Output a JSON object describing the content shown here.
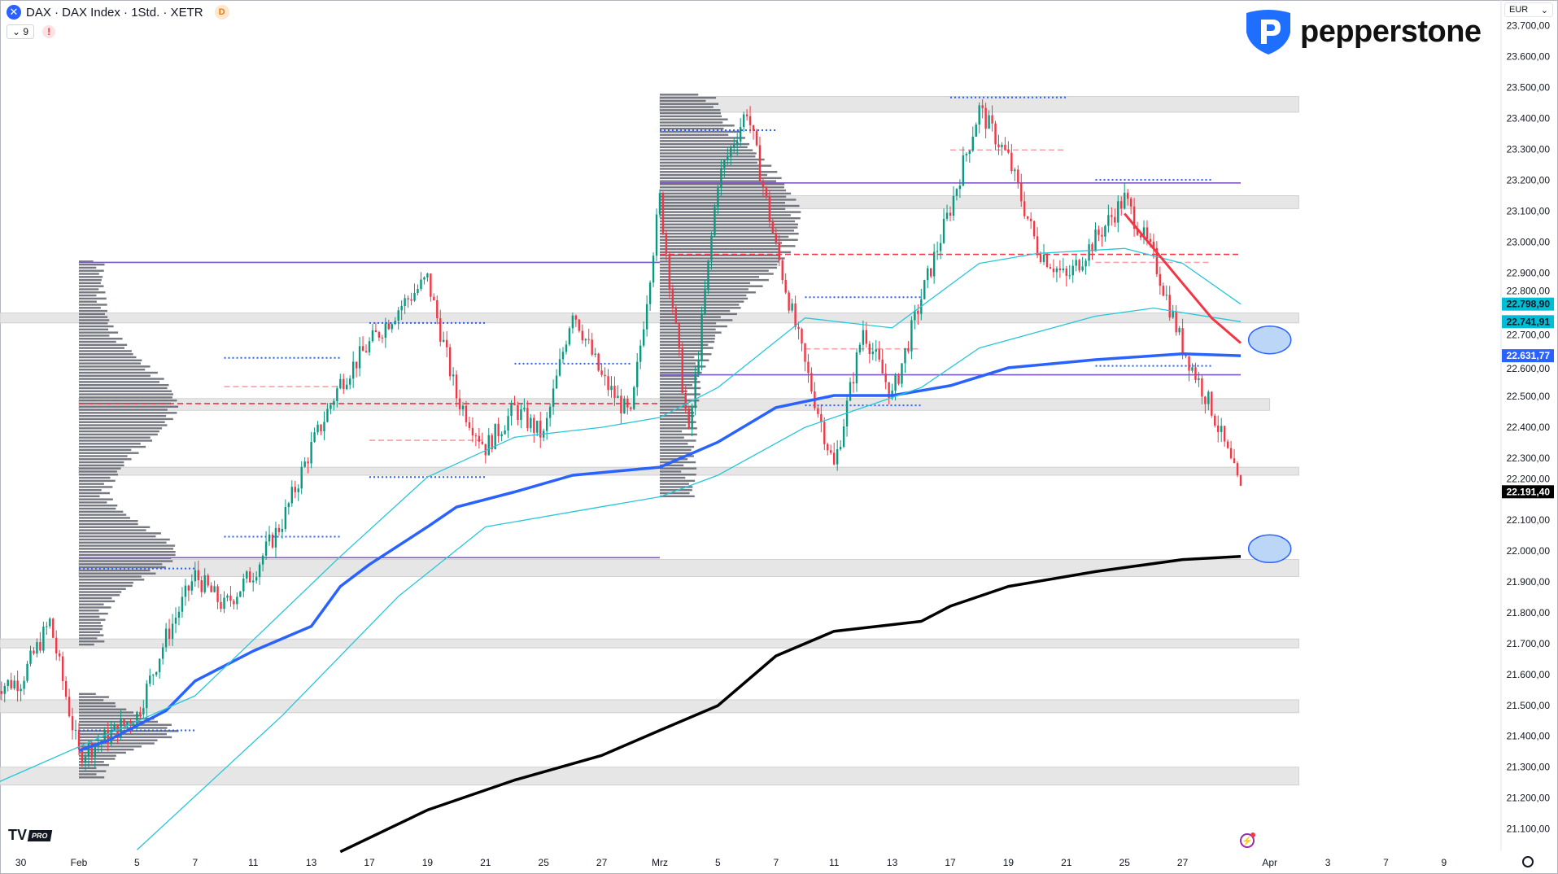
{
  "header": {
    "symbol_title": "DAX · DAX Index · 1Std. · XETR",
    "symbol_icon": "x-circle-icon",
    "delayed_badge": "D",
    "indicator_count": "9",
    "warning_badge": "!"
  },
  "brand": {
    "logo_text": "pepperstone",
    "color": "#1e6fff"
  },
  "currency_selector": "EUR",
  "footer": {
    "tv_logo": "TV",
    "tv_pro": "PRO"
  },
  "colors": {
    "up": "#089981",
    "down": "#f23645",
    "vwap": "#2962ff",
    "ma": "#26c6da",
    "sma": "#000000",
    "purple": "#7e57c2",
    "zone": "#e0e0e0"
  },
  "price_labels": [
    {
      "text": "22.798,90",
      "price": 22798.9,
      "bg": "#00bcd4",
      "fg": "#131722"
    },
    {
      "text": "22.741,91",
      "price": 22741.91,
      "bg": "#00bcd4",
      "fg": "#131722"
    },
    {
      "text": "22.631,77",
      "price": 22631.77,
      "bg": "#2962ff",
      "fg": "#ffffff"
    },
    {
      "text": "22.191,40",
      "price": 22191.4,
      "bg": "#000000",
      "fg": "#ffffff"
    }
  ],
  "chart_data": {
    "type": "candlestick",
    "timeframe": "1Std.",
    "y_ticks": [
      "23.700,00",
      "23.600,00",
      "23.500,00",
      "23.400,00",
      "23.300,00",
      "23.200,00",
      "23.100,00",
      "23.000,00",
      "22.900,00",
      "22.800,00",
      "22.700,00",
      "22.600,00",
      "22.500,00",
      "22.400,00",
      "22.300,00",
      "22.200,00",
      "22.100,00",
      "22.000,00",
      "21.900,00",
      "21.800,00",
      "21.700,00",
      "21.600,00",
      "21.500,00",
      "21.400,00",
      "21.300,00",
      "21.200,00",
      "21.100,00"
    ],
    "ylim": [
      21050,
      23760
    ],
    "x_ticks": [
      {
        "label": "30",
        "date": "2025-01-30"
      },
      {
        "label": "Feb",
        "date": "2025-02-03"
      },
      {
        "label": "5",
        "date": "2025-02-05"
      },
      {
        "label": "7",
        "date": "2025-02-07"
      },
      {
        "label": "11",
        "date": "2025-02-11"
      },
      {
        "label": "13",
        "date": "2025-02-13"
      },
      {
        "label": "17",
        "date": "2025-02-17"
      },
      {
        "label": "19",
        "date": "2025-02-19"
      },
      {
        "label": "21",
        "date": "2025-02-21"
      },
      {
        "label": "25",
        "date": "2025-02-25"
      },
      {
        "label": "27",
        "date": "2025-02-27"
      },
      {
        "label": "Mrz",
        "date": "2025-03-03"
      },
      {
        "label": "5",
        "date": "2025-03-05"
      },
      {
        "label": "7",
        "date": "2025-03-07"
      },
      {
        "label": "11",
        "date": "2025-03-11"
      },
      {
        "label": "13",
        "date": "2025-03-13"
      },
      {
        "label": "17",
        "date": "2025-03-17"
      },
      {
        "label": "19",
        "date": "2025-03-19"
      },
      {
        "label": "21",
        "date": "2025-03-21"
      },
      {
        "label": "25",
        "date": "2025-03-25"
      },
      {
        "label": "27",
        "date": "2025-03-27"
      },
      {
        "label": "Apr",
        "date": "2025-04-01"
      },
      {
        "label": "3",
        "date": "2025-04-03"
      },
      {
        "label": "7",
        "date": "2025-04-07"
      },
      {
        "label": "9",
        "date": "2025-04-09"
      }
    ],
    "price_path": [
      [
        "2025-01-29",
        21560
      ],
      [
        "2025-01-30",
        21580
      ],
      [
        "2025-01-31",
        21770
      ],
      [
        "2025-02-03",
        21340
      ],
      [
        "2025-02-04",
        21400
      ],
      [
        "2025-02-05",
        21470
      ],
      [
        "2025-02-06",
        21720
      ],
      [
        "2025-02-07",
        21920
      ],
      [
        "2025-02-10",
        21820
      ],
      [
        "2025-02-11",
        21930
      ],
      [
        "2025-02-12",
        22095
      ],
      [
        "2025-02-13",
        22335
      ],
      [
        "2025-02-14",
        22545
      ],
      [
        "2025-02-17",
        22670
      ],
      [
        "2025-02-18",
        22785
      ],
      [
        "2025-02-19",
        22880
      ],
      [
        "2025-02-20",
        22500
      ],
      [
        "2025-02-21",
        22335
      ],
      [
        "2025-02-24",
        22460
      ],
      [
        "2025-02-25",
        22370
      ],
      [
        "2025-02-26",
        22785
      ],
      [
        "2025-02-27",
        22560
      ],
      [
        "2025-02-28",
        22430
      ],
      [
        "2025-03-03",
        23140
      ],
      [
        "2025-03-04",
        22370
      ],
      [
        "2025-03-05",
        23200
      ],
      [
        "2025-03-06",
        23430
      ],
      [
        "2025-03-07",
        22980
      ],
      [
        "2025-03-10",
        22600
      ],
      [
        "2025-03-11",
        22270
      ],
      [
        "2025-03-12",
        22720
      ],
      [
        "2025-03-13",
        22500
      ],
      [
        "2025-03-14",
        22820
      ],
      [
        "2025-03-17",
        23110
      ],
      [
        "2025-03-18",
        23430
      ],
      [
        "2025-03-19",
        23270
      ],
      [
        "2025-03-20",
        22980
      ],
      [
        "2025-03-21",
        22880
      ],
      [
        "2025-03-24",
        23010
      ],
      [
        "2025-03-25",
        23140
      ],
      [
        "2025-03-26",
        22950
      ],
      [
        "2025-03-27",
        22660
      ],
      [
        "2025-03-28",
        22460
      ],
      [
        "2025-03-31",
        22191.4
      ]
    ],
    "lines": [
      {
        "id": "vwap",
        "color": "#2962ff",
        "width": 3.5,
        "points": [
          [
            "2025-02-03",
            21354
          ],
          [
            "2025-02-04",
            21386
          ],
          [
            "2025-02-06",
            21483
          ],
          [
            "2025-02-07",
            21579
          ],
          [
            "2025-02-11",
            21676
          ],
          [
            "2025-02-13",
            21756
          ],
          [
            "2025-02-14",
            21885
          ],
          [
            "2025-02-17",
            21956
          ],
          [
            "2025-02-19",
            22078
          ],
          [
            "2025-02-20",
            22142
          ],
          [
            "2025-02-24",
            22191
          ],
          [
            "2025-02-26",
            22245
          ],
          [
            "2025-03-03",
            22271
          ],
          [
            "2025-03-05",
            22352
          ],
          [
            "2025-03-07",
            22464
          ],
          [
            "2025-03-11",
            22503
          ],
          [
            "2025-03-13",
            22503
          ],
          [
            "2025-03-17",
            22535
          ],
          [
            "2025-03-19",
            22593
          ],
          [
            "2025-03-24",
            22619
          ],
          [
            "2025-03-27",
            22638
          ],
          [
            "2025-03-31",
            22631.77
          ]
        ]
      },
      {
        "id": "sma-black",
        "color": "#000000",
        "width": 3.5,
        "points": [
          [
            "2025-02-14",
            21026
          ],
          [
            "2025-02-19",
            21161
          ],
          [
            "2025-02-24",
            21258
          ],
          [
            "2025-02-27",
            21338
          ],
          [
            "2025-03-03",
            21419
          ],
          [
            "2025-03-05",
            21499
          ],
          [
            "2025-03-07",
            21660
          ],
          [
            "2025-03-11",
            21740
          ],
          [
            "2025-03-14",
            21772
          ],
          [
            "2025-03-17",
            21821
          ],
          [
            "2025-03-19",
            21885
          ],
          [
            "2025-03-24",
            21933
          ],
          [
            "2025-03-27",
            21972
          ],
          [
            "2025-03-31",
            21982
          ]
        ]
      },
      {
        "id": "ma-cyan-fast",
        "color": "#26c6da",
        "width": 1.3,
        "points": [
          [
            "2025-01-29",
            21242
          ],
          [
            "2025-02-07",
            21531
          ],
          [
            "2025-02-14",
            21982
          ],
          [
            "2025-02-19",
            22239
          ],
          [
            "2025-02-24",
            22368
          ],
          [
            "2025-02-27",
            22400
          ],
          [
            "2025-03-03",
            22432
          ],
          [
            "2025-03-05",
            22529
          ],
          [
            "2025-03-10",
            22754
          ],
          [
            "2025-03-13",
            22722
          ],
          [
            "2025-03-18",
            22931
          ],
          [
            "2025-03-20",
            22963
          ],
          [
            "2025-03-25",
            22979
          ],
          [
            "2025-03-27",
            22931
          ],
          [
            "2025-03-31",
            22798.9
          ]
        ]
      },
      {
        "id": "ma-cyan-slow",
        "color": "#26c6da",
        "width": 1.3,
        "points": [
          [
            "2025-02-05",
            21032
          ],
          [
            "2025-02-12",
            21467
          ],
          [
            "2025-02-18",
            21853
          ],
          [
            "2025-02-21",
            22078
          ],
          [
            "2025-02-27",
            22143
          ],
          [
            "2025-03-03",
            22175
          ],
          [
            "2025-03-05",
            22245
          ],
          [
            "2025-03-10",
            22400
          ],
          [
            "2025-03-12",
            22464
          ],
          [
            "2025-03-14",
            22529
          ],
          [
            "2025-03-18",
            22657
          ],
          [
            "2025-03-24",
            22760
          ],
          [
            "2025-03-26",
            22786
          ],
          [
            "2025-03-31",
            22741.91
          ]
        ]
      },
      {
        "id": "ma-red",
        "color": "#f23645",
        "width": 3,
        "points": [
          [
            "2025-03-25",
            23092
          ],
          [
            "2025-03-26",
            22979
          ],
          [
            "2025-03-27",
            22866
          ],
          [
            "2025-03-28",
            22754
          ],
          [
            "2025-03-31",
            22673
          ]
        ]
      }
    ],
    "zones": [
      {
        "from": "2025-03-03",
        "to": "2025-04-02",
        "high": 23471,
        "low": 23420
      },
      {
        "from": "2025-03-03",
        "to": "2025-04-02",
        "high": 23150,
        "low": 23108
      },
      {
        "from": "2025-01-29",
        "to": "2025-04-02",
        "high": 22770,
        "low": 22738
      },
      {
        "from": "2025-02-03",
        "to": "2025-04-01",
        "high": 22493,
        "low": 22455
      },
      {
        "from": "2025-02-03",
        "to": "2025-04-02",
        "high": 22271,
        "low": 22245
      },
      {
        "from": "2025-02-03",
        "to": "2025-04-02",
        "high": 21972,
        "low": 21917
      },
      {
        "from": "2025-01-29",
        "to": "2025-04-02",
        "high": 21715,
        "low": 21686
      },
      {
        "from": "2025-01-29",
        "to": "2025-04-02",
        "high": 21518,
        "low": 21476
      },
      {
        "from": "2025-01-29",
        "to": "2025-04-02",
        "high": 21300,
        "low": 21242
      }
    ],
    "levels": [
      {
        "from": "2025-02-03",
        "to": "2025-03-03",
        "price": 22934,
        "style": "solid",
        "color": "#7e57c2"
      },
      {
        "from": "2025-03-03",
        "to": "2025-03-31",
        "price": 23191,
        "style": "solid",
        "color": "#7e57c2"
      },
      {
        "from": "2025-03-03",
        "to": "2025-03-31",
        "price": 22570,
        "style": "solid",
        "color": "#7e57c2"
      },
      {
        "from": "2025-02-03",
        "to": "2025-03-03",
        "price": 21978,
        "style": "solid",
        "color": "#7e57c2"
      },
      {
        "from": "2025-03-03",
        "to": "2025-03-31",
        "price": 22960,
        "style": "dashed",
        "color": "#f23645"
      },
      {
        "from": "2025-02-03",
        "to": "2025-03-03",
        "price": 22477,
        "style": "dashed",
        "color": "#f23645"
      },
      {
        "from": "2025-03-17",
        "to": "2025-03-21",
        "price": 23298,
        "style": "dashed",
        "color": "#f7a1a8"
      },
      {
        "from": "2025-03-24",
        "to": "2025-03-28",
        "price": 22934,
        "style": "dashed",
        "color": "#f7a1a8"
      },
      {
        "from": "2025-02-10",
        "to": "2025-02-14",
        "price": 22532,
        "style": "dashed",
        "color": "#f7a1a8"
      },
      {
        "from": "2025-02-17",
        "to": "2025-02-21",
        "price": 22358,
        "style": "dashed",
        "color": "#f7a1a8"
      },
      {
        "from": "2025-03-10",
        "to": "2025-03-14",
        "price": 22654,
        "style": "dashed",
        "color": "#f7a1a8"
      },
      {
        "from": "2025-03-17",
        "to": "2025-03-21",
        "price": 23468,
        "style": "dotted",
        "color": "#2962ff"
      },
      {
        "from": "2025-03-03",
        "to": "2025-03-07",
        "price": 23362,
        "style": "dotted",
        "color": "#2962ff"
      },
      {
        "from": "2025-03-24",
        "to": "2025-03-28",
        "price": 23201,
        "style": "dotted",
        "color": "#2962ff"
      },
      {
        "from": "2025-02-17",
        "to": "2025-02-21",
        "price": 22738,
        "style": "dotted",
        "color": "#2962ff"
      },
      {
        "from": "2025-02-10",
        "to": "2025-02-14",
        "price": 22625,
        "style": "dotted",
        "color": "#2962ff"
      },
      {
        "from": "2025-02-24",
        "to": "2025-02-28",
        "price": 22606,
        "style": "dotted",
        "color": "#2962ff"
      },
      {
        "from": "2025-03-10",
        "to": "2025-03-14",
        "price": 22821,
        "style": "dotted",
        "color": "#2962ff"
      },
      {
        "from": "2025-03-24",
        "to": "2025-03-28",
        "price": 22599,
        "style": "dotted",
        "color": "#2962ff"
      },
      {
        "from": "2025-03-10",
        "to": "2025-03-14",
        "price": 22471,
        "style": "dotted",
        "color": "#2962ff"
      },
      {
        "from": "2025-02-17",
        "to": "2025-02-21",
        "price": 22239,
        "style": "dotted",
        "color": "#2962ff"
      },
      {
        "from": "2025-02-10",
        "to": "2025-02-14",
        "price": 22046,
        "style": "dotted",
        "color": "#2962ff"
      },
      {
        "from": "2025-02-03",
        "to": "2025-02-07",
        "price": 21943,
        "style": "dotted",
        "color": "#2962ff"
      },
      {
        "from": "2025-02-03",
        "to": "2025-02-07",
        "price": 21419,
        "style": "dotted",
        "color": "#2962ff"
      }
    ],
    "volume_profiles": [
      {
        "start": "2025-02-03",
        "high": 22940,
        "low": 22180,
        "poc": 22477
      },
      {
        "start": "2025-02-03",
        "high": 22180,
        "low": 21690,
        "poc": 22000
      },
      {
        "start": "2025-02-03",
        "high": 21540,
        "low": 21260,
        "poc": 21420
      },
      {
        "start": "2025-03-03",
        "high": 23480,
        "low": 22170,
        "poc": 23070
      }
    ],
    "markers": [
      {
        "date": "2025-04-01",
        "price": 22683
      },
      {
        "date": "2025-04-01",
        "price": 22007
      }
    ]
  }
}
